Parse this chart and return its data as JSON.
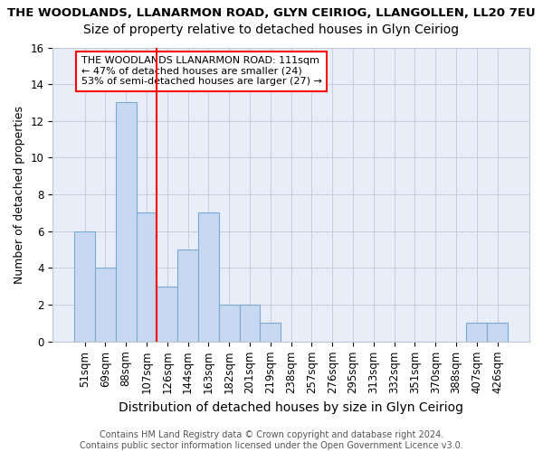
{
  "title": "THE WOODLANDS, LLANARMON ROAD, GLYN CEIRIOG, LLANGOLLEN, LL20 7EU",
  "subtitle": "Size of property relative to detached houses in Glyn Ceiriog",
  "xlabel": "Distribution of detached houses by size in Glyn Ceiriog",
  "ylabel": "Number of detached properties",
  "bar_labels": [
    "51sqm",
    "69sqm",
    "88sqm",
    "107sqm",
    "126sqm",
    "144sqm",
    "163sqm",
    "182sqm",
    "201sqm",
    "219sqm",
    "238sqm",
    "257sqm",
    "276sqm",
    "295sqm",
    "313sqm",
    "332sqm",
    "351sqm",
    "370sqm",
    "388sqm",
    "407sqm",
    "426sqm"
  ],
  "bar_values": [
    6,
    4,
    13,
    7,
    3,
    5,
    7,
    2,
    2,
    1,
    0,
    0,
    0,
    0,
    0,
    0,
    0,
    0,
    0,
    1,
    1
  ],
  "bar_color": "#c8d8f0",
  "bar_edge_color": "#7aaad4",
  "vline_color": "red",
  "vline_x_index": 3,
  "ylim": [
    0,
    16
  ],
  "yticks": [
    0,
    2,
    4,
    6,
    8,
    10,
    12,
    14,
    16
  ],
  "annotation_title": "THE WOODLANDS LLANARMON ROAD: 111sqm",
  "annotation_line1": "← 47% of detached houses are smaller (24)",
  "annotation_line2": "53% of semi-detached houses are larger (27) →",
  "footer1": "Contains HM Land Registry data © Crown copyright and database right 2024.",
  "footer2": "Contains public sector information licensed under the Open Government Licence v3.0.",
  "background_color": "#ffffff",
  "plot_bg_color": "#e8eef8",
  "grid_color": "#c0c8d8",
  "title_fontsize": 9.5,
  "subtitle_fontsize": 10,
  "xlabel_fontsize": 10,
  "ylabel_fontsize": 9,
  "tick_fontsize": 8.5,
  "footer_fontsize": 7,
  "annotation_fontsize": 8
}
